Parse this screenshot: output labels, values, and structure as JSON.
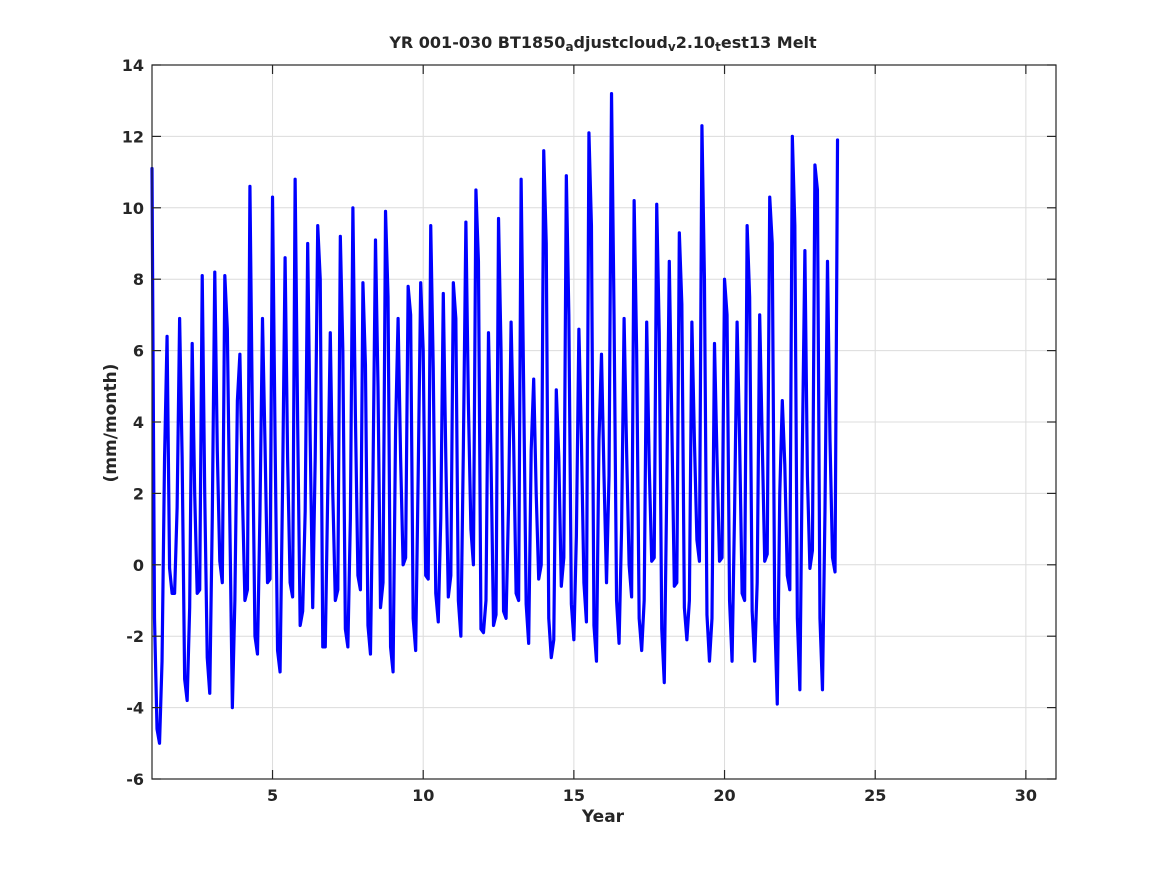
{
  "chart_data": {
    "type": "line",
    "title": {
      "parts": [
        {
          "text": "YR 001-030 BT1850",
          "sub": false
        },
        {
          "text": "a",
          "sub": true
        },
        {
          "text": "djustcloud",
          "sub": false
        },
        {
          "text": "v",
          "sub": true
        },
        {
          "text": "2.10",
          "sub": false
        },
        {
          "text": "t",
          "sub": true
        },
        {
          "text": "est13 Melt",
          "sub": false
        }
      ]
    },
    "xlabel": "Year",
    "ylabel": "(mm/month)",
    "xlim": [
      1,
      31
    ],
    "ylim": [
      -6,
      14
    ],
    "xticks": [
      5,
      10,
      15,
      20,
      25,
      30
    ],
    "yticks": [
      -6,
      -4,
      -2,
      0,
      2,
      4,
      6,
      8,
      10,
      12,
      14
    ],
    "grid": true,
    "line_color": "#0000ff",
    "series": [
      {
        "x_start": 1,
        "x_step": 0.08333333,
        "values": [
          11.1,
          -1.5,
          -4.6,
          -5.0,
          -2.7,
          3.0,
          6.4,
          -0.1,
          -0.8,
          -0.8,
          1.6,
          6.9,
          3.0,
          -3.2,
          -3.8,
          -1.2,
          6.2,
          2.0,
          -0.8,
          -0.7,
          8.1,
          2.0,
          -2.6,
          -3.6,
          1.3,
          8.2,
          3.2,
          0.1,
          -0.5,
          8.1,
          6.6,
          1.2,
          -4.0,
          -1.0,
          4.6,
          5.9,
          2.0,
          -1.0,
          -0.7,
          10.6,
          4.0,
          -2.0,
          -2.5,
          1.5,
          6.9,
          3.4,
          -0.5,
          -0.4,
          10.3,
          3.6,
          -2.4,
          -3.0,
          2.2,
          8.6,
          3.0,
          -0.5,
          -0.9,
          10.8,
          4.0,
          -1.7,
          -1.3,
          1.5,
          9.0,
          3.5,
          -1.2,
          3.0,
          9.5,
          8.0,
          -2.3,
          -2.3,
          2.1,
          6.5,
          2.0,
          -1.0,
          -0.7,
          9.2,
          6.0,
          -1.8,
          -2.3,
          1.3,
          10.0,
          4.2,
          -0.3,
          -0.7,
          7.9,
          5.6,
          -1.7,
          -2.5,
          2.5,
          9.1,
          5.0,
          -1.2,
          -0.5,
          9.9,
          7.5,
          -2.3,
          -3.0,
          3.8,
          6.9,
          3.0,
          0.0,
          0.2,
          7.8,
          7.0,
          -1.5,
          -2.4,
          2.5,
          7.9,
          6.0,
          -0.3,
          -0.4,
          9.5,
          5.5,
          -0.8,
          -1.6,
          1.3,
          7.6,
          3.0,
          -0.9,
          -0.3,
          7.9,
          6.9,
          -1.0,
          -2.0,
          3.3,
          9.6,
          4.5,
          1.0,
          0.0,
          10.5,
          8.5,
          -1.8,
          -1.9,
          -1.0,
          6.5,
          3.0,
          -1.7,
          -1.4,
          9.7,
          6.0,
          -1.3,
          -1.5,
          1.7,
          6.8,
          3.5,
          -0.8,
          -1.0,
          10.8,
          5.0,
          -1.1,
          -2.2,
          3.2,
          5.2,
          2.0,
          -0.4,
          0.0,
          11.6,
          9.0,
          -1.5,
          -2.6,
          -2.1,
          4.9,
          3.0,
          -0.6,
          0.2,
          10.9,
          7.0,
          -1.1,
          -2.1,
          0.8,
          6.6,
          3.5,
          -0.5,
          -1.6,
          12.1,
          9.5,
          -1.7,
          -2.7,
          3.5,
          5.9,
          2.5,
          -0.5,
          2.5,
          13.2,
          7.0,
          -1.0,
          -2.2,
          1.0,
          6.9,
          3.2,
          0.0,
          -0.9,
          10.2,
          6.0,
          -1.5,
          -2.4,
          -1.0,
          6.8,
          2.8,
          0.1,
          0.2,
          10.1,
          6.5,
          -1.8,
          -3.3,
          2.2,
          8.5,
          4.0,
          -0.6,
          -0.5,
          9.3,
          7.3,
          -1.2,
          -2.1,
          -1.0,
          6.8,
          3.5,
          0.7,
          0.1,
          12.3,
          8.0,
          -1.4,
          -2.7,
          -1.5,
          6.2,
          3.0,
          0.1,
          0.2,
          8.0,
          7.0,
          -1.0,
          -2.7,
          1.5,
          6.8,
          3.5,
          -0.8,
          -1.0,
          9.5,
          7.5,
          -1.3,
          -2.7,
          -0.5,
          7.0,
          3.5,
          0.1,
          0.3,
          10.3,
          9.0,
          -1.5,
          -3.9,
          2.0,
          4.6,
          2.8,
          -0.3,
          -0.7,
          12.0,
          9.5,
          -1.5,
          -3.5,
          3.3,
          8.8,
          2.5,
          -0.1,
          0.4,
          11.2,
          10.5,
          -1.5,
          -3.5,
          1.5,
          8.5,
          3.5,
          0.2,
          -0.2,
          11.9
        ]
      }
    ]
  }
}
